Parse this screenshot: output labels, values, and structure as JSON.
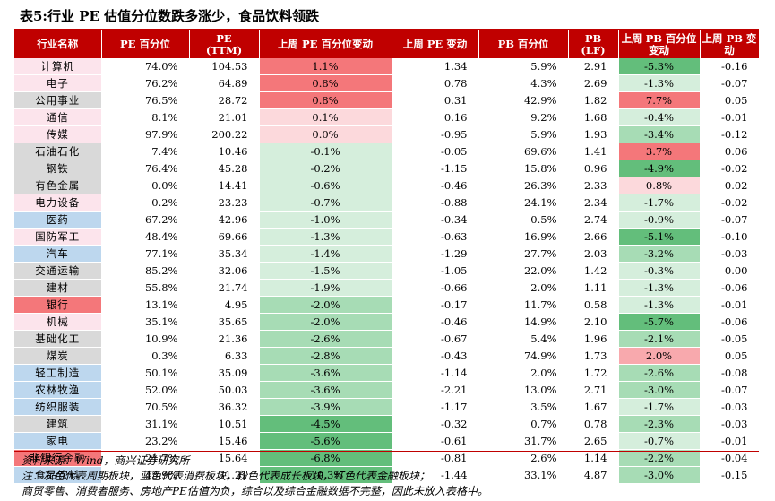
{
  "title": "表5:行业 PE 估值分位数跌多涨少，食品饮料领跌",
  "headers": [
    "行业名称",
    "PE 百分位",
    "PE\n(TTM)",
    "上周 PE 百分位变动",
    "上周 PE 变动",
    "PB 百分位",
    "PB\n(LF)",
    "上周 PB 百分位变动",
    "上周 PB 变动"
  ],
  "colors": {
    "header_bg": "#c00000",
    "cyclical": "#d9d9d9",
    "consumer": "#bdd7ee",
    "growth": "#fce4ec",
    "financial": "#f4777a",
    "increase_strong": "#f4777a",
    "increase_mid": "#f8a9ad",
    "increase_light": "#fcd9dc",
    "decrease_light": "#d5eedc",
    "decrease_mid": "#a7dcb5",
    "decrease_strong": "#63be7b"
  },
  "rows": [
    {
      "industry": "计算机",
      "category": "growth",
      "pe_pct": "74.0%",
      "pe_ttm": "104.53",
      "pe_pct_chg": "1.1%",
      "pe_pct_chg_val": 1.1,
      "pe_chg": "1.34",
      "pb_pct": "5.9%",
      "pb_lf": "2.91",
      "pb_pct_chg": "-5.3%",
      "pb_pct_chg_val": -5.3,
      "pb_chg": "-0.16"
    },
    {
      "industry": "电子",
      "category": "growth",
      "pe_pct": "76.2%",
      "pe_ttm": "64.89",
      "pe_pct_chg": "0.8%",
      "pe_pct_chg_val": 0.8,
      "pe_chg": "0.78",
      "pb_pct": "4.3%",
      "pb_lf": "2.69",
      "pb_pct_chg": "-1.3%",
      "pb_pct_chg_val": -1.3,
      "pb_chg": "-0.07"
    },
    {
      "industry": "公用事业",
      "category": "cyclical",
      "pe_pct": "76.5%",
      "pe_ttm": "28.72",
      "pe_pct_chg": "0.8%",
      "pe_pct_chg_val": 0.8,
      "pe_chg": "0.31",
      "pb_pct": "42.9%",
      "pb_lf": "1.82",
      "pb_pct_chg": "7.7%",
      "pb_pct_chg_val": 7.7,
      "pb_chg": "0.05"
    },
    {
      "industry": "通信",
      "category": "growth",
      "pe_pct": "8.1%",
      "pe_ttm": "21.01",
      "pe_pct_chg": "0.1%",
      "pe_pct_chg_val": 0.1,
      "pe_chg": "0.16",
      "pb_pct": "9.2%",
      "pb_lf": "1.68",
      "pb_pct_chg": "-0.4%",
      "pb_pct_chg_val": -0.4,
      "pb_chg": "-0.01"
    },
    {
      "industry": "传媒",
      "category": "growth",
      "pe_pct": "97.9%",
      "pe_ttm": "200.22",
      "pe_pct_chg": "0.0%",
      "pe_pct_chg_val": 0.0,
      "pe_chg": "-0.95",
      "pb_pct": "5.9%",
      "pb_lf": "1.93",
      "pb_pct_chg": "-3.4%",
      "pb_pct_chg_val": -3.4,
      "pb_chg": "-0.12"
    },
    {
      "industry": "石油石化",
      "category": "cyclical",
      "pe_pct": "7.4%",
      "pe_ttm": "10.46",
      "pe_pct_chg": "-0.1%",
      "pe_pct_chg_val": -0.1,
      "pe_chg": "-0.05",
      "pb_pct": "69.6%",
      "pb_lf": "1.41",
      "pb_pct_chg": "3.7%",
      "pb_pct_chg_val": 3.7,
      "pb_chg": "0.06"
    },
    {
      "industry": "钢铁",
      "category": "cyclical",
      "pe_pct": "76.4%",
      "pe_ttm": "45.28",
      "pe_pct_chg": "-0.2%",
      "pe_pct_chg_val": -0.2,
      "pe_chg": "-1.15",
      "pb_pct": "15.8%",
      "pb_lf": "0.96",
      "pb_pct_chg": "-4.9%",
      "pb_pct_chg_val": -4.9,
      "pb_chg": "-0.02"
    },
    {
      "industry": "有色金属",
      "category": "cyclical",
      "pe_pct": "0.0%",
      "pe_ttm": "14.41",
      "pe_pct_chg": "-0.6%",
      "pe_pct_chg_val": -0.6,
      "pe_chg": "-0.46",
      "pb_pct": "26.3%",
      "pb_lf": "2.33",
      "pb_pct_chg": "0.8%",
      "pb_pct_chg_val": 0.8,
      "pb_chg": "0.02"
    },
    {
      "industry": "电力设备",
      "category": "growth",
      "pe_pct": "0.2%",
      "pe_ttm": "23.23",
      "pe_pct_chg": "-0.7%",
      "pe_pct_chg_val": -0.7,
      "pe_chg": "-0.88",
      "pb_pct": "24.1%",
      "pb_lf": "2.34",
      "pb_pct_chg": "-1.7%",
      "pb_pct_chg_val": -1.7,
      "pb_chg": "-0.02"
    },
    {
      "industry": "医药",
      "category": "consumer",
      "pe_pct": "67.2%",
      "pe_ttm": "42.96",
      "pe_pct_chg": "-1.0%",
      "pe_pct_chg_val": -1.0,
      "pe_chg": "-0.34",
      "pb_pct": "0.5%",
      "pb_lf": "2.74",
      "pb_pct_chg": "-0.9%",
      "pb_pct_chg_val": -0.9,
      "pb_chg": "-0.07"
    },
    {
      "industry": "国防军工",
      "category": "growth",
      "pe_pct": "48.4%",
      "pe_ttm": "69.66",
      "pe_pct_chg": "-1.3%",
      "pe_pct_chg_val": -1.3,
      "pe_chg": "-0.63",
      "pb_pct": "16.9%",
      "pb_lf": "2.66",
      "pb_pct_chg": "-5.1%",
      "pb_pct_chg_val": -5.1,
      "pb_chg": "-0.10"
    },
    {
      "industry": "汽车",
      "category": "consumer",
      "pe_pct": "77.1%",
      "pe_ttm": "35.34",
      "pe_pct_chg": "-1.4%",
      "pe_pct_chg_val": -1.4,
      "pe_chg": "-1.29",
      "pb_pct": "27.7%",
      "pb_lf": "2.03",
      "pb_pct_chg": "-3.2%",
      "pb_pct_chg_val": -3.2,
      "pb_chg": "-0.03"
    },
    {
      "industry": "交通运输",
      "category": "cyclical",
      "pe_pct": "85.2%",
      "pe_ttm": "32.06",
      "pe_pct_chg": "-1.5%",
      "pe_pct_chg_val": -1.5,
      "pe_chg": "-1.05",
      "pb_pct": "22.0%",
      "pb_lf": "1.42",
      "pb_pct_chg": "-0.3%",
      "pb_pct_chg_val": -0.3,
      "pb_chg": "0.00"
    },
    {
      "industry": "建材",
      "category": "cyclical",
      "pe_pct": "55.8%",
      "pe_ttm": "21.74",
      "pe_pct_chg": "-1.9%",
      "pe_pct_chg_val": -1.9,
      "pe_chg": "-0.66",
      "pb_pct": "2.0%",
      "pb_lf": "1.11",
      "pb_pct_chg": "-1.3%",
      "pb_pct_chg_val": -1.3,
      "pb_chg": "-0.06"
    },
    {
      "industry": "银行",
      "category": "financial",
      "pe_pct": "13.1%",
      "pe_ttm": "4.95",
      "pe_pct_chg": "-2.0%",
      "pe_pct_chg_val": -2.0,
      "pe_chg": "-0.17",
      "pb_pct": "11.7%",
      "pb_lf": "0.58",
      "pb_pct_chg": "-1.3%",
      "pb_pct_chg_val": -1.3,
      "pb_chg": "-0.01"
    },
    {
      "industry": "机械",
      "category": "growth",
      "pe_pct": "35.1%",
      "pe_ttm": "35.65",
      "pe_pct_chg": "-2.0%",
      "pe_pct_chg_val": -2.0,
      "pe_chg": "-0.46",
      "pb_pct": "14.9%",
      "pb_lf": "2.10",
      "pb_pct_chg": "-5.7%",
      "pb_pct_chg_val": -5.7,
      "pb_chg": "-0.06"
    },
    {
      "industry": "基础化工",
      "category": "cyclical",
      "pe_pct": "10.9%",
      "pe_ttm": "21.36",
      "pe_pct_chg": "-2.6%",
      "pe_pct_chg_val": -2.6,
      "pe_chg": "-0.67",
      "pb_pct": "5.4%",
      "pb_lf": "1.96",
      "pb_pct_chg": "-2.1%",
      "pb_pct_chg_val": -2.1,
      "pb_chg": "-0.05"
    },
    {
      "industry": "煤炭",
      "category": "cyclical",
      "pe_pct": "0.3%",
      "pe_ttm": "6.33",
      "pe_pct_chg": "-2.8%",
      "pe_pct_chg_val": -2.8,
      "pe_chg": "-0.43",
      "pb_pct": "74.9%",
      "pb_lf": "1.73",
      "pb_pct_chg": "2.0%",
      "pb_pct_chg_val": 2.0,
      "pb_chg": "0.05"
    },
    {
      "industry": "轻工制造",
      "category": "consumer",
      "pe_pct": "50.1%",
      "pe_ttm": "35.09",
      "pe_pct_chg": "-3.6%",
      "pe_pct_chg_val": -3.6,
      "pe_chg": "-1.14",
      "pb_pct": "2.0%",
      "pb_lf": "1.72",
      "pb_pct_chg": "-2.6%",
      "pb_pct_chg_val": -2.6,
      "pb_chg": "-0.08"
    },
    {
      "industry": "农林牧渔",
      "category": "consumer",
      "pe_pct": "52.0%",
      "pe_ttm": "50.03",
      "pe_pct_chg": "-3.6%",
      "pe_pct_chg_val": -3.6,
      "pe_chg": "-2.21",
      "pb_pct": "13.0%",
      "pb_lf": "2.71",
      "pb_pct_chg": "-3.0%",
      "pb_pct_chg_val": -3.0,
      "pb_chg": "-0.07"
    },
    {
      "industry": "纺织服装",
      "category": "consumer",
      "pe_pct": "70.5%",
      "pe_ttm": "36.32",
      "pe_pct_chg": "-3.9%",
      "pe_pct_chg_val": -3.9,
      "pe_chg": "-1.17",
      "pb_pct": "3.5%",
      "pb_lf": "1.67",
      "pb_pct_chg": "-1.7%",
      "pb_pct_chg_val": -1.7,
      "pb_chg": "-0.03"
    },
    {
      "industry": "建筑",
      "category": "cyclical",
      "pe_pct": "31.1%",
      "pe_ttm": "10.51",
      "pe_pct_chg": "-4.5%",
      "pe_pct_chg_val": -4.5,
      "pe_chg": "-0.32",
      "pb_pct": "0.7%",
      "pb_lf": "0.78",
      "pb_pct_chg": "-2.3%",
      "pb_pct_chg_val": -2.3,
      "pb_chg": "-0.03"
    },
    {
      "industry": "家电",
      "category": "consumer",
      "pe_pct": "23.2%",
      "pe_ttm": "15.46",
      "pe_pct_chg": "-5.6%",
      "pe_pct_chg_val": -5.6,
      "pe_chg": "-0.61",
      "pb_pct": "31.7%",
      "pb_lf": "2.65",
      "pb_pct_chg": "-0.7%",
      "pb_pct_chg_val": -0.7,
      "pb_chg": "-0.01"
    },
    {
      "industry": "非银行金融",
      "category": "financial",
      "pe_pct": "21.7%",
      "pe_ttm": "15.64",
      "pe_pct_chg": "-6.8%",
      "pe_pct_chg_val": -6.8,
      "pe_chg": "-0.81",
      "pb_pct": "2.6%",
      "pb_lf": "1.14",
      "pb_pct_chg": "-2.2%",
      "pb_pct_chg_val": -2.2,
      "pb_chg": "-0.04"
    },
    {
      "industry": "食品饮料",
      "category": "consumer",
      "pe_pct": "43.9%",
      "pe_ttm": "31.21",
      "pe_pct_chg": "-10.3%",
      "pe_pct_chg_val": -10.3,
      "pe_chg": "-1.44",
      "pb_pct": "33.1%",
      "pb_lf": "4.87",
      "pb_pct_chg": "-3.0%",
      "pb_pct_chg_val": -3.0,
      "pb_chg": "-0.15"
    }
  ],
  "footnotes": {
    "source": "资料来源：Wind，商兴证券研究所",
    "note1": "注：灰色代表周期板块，蓝色代表消费板块，粉色代表成长板块，红色代表金融板块；",
    "note2": "商贸零售、消费者服务、房地产PE估值为负，综合以及综合金融数据不完整，因此未放入表格中。"
  }
}
